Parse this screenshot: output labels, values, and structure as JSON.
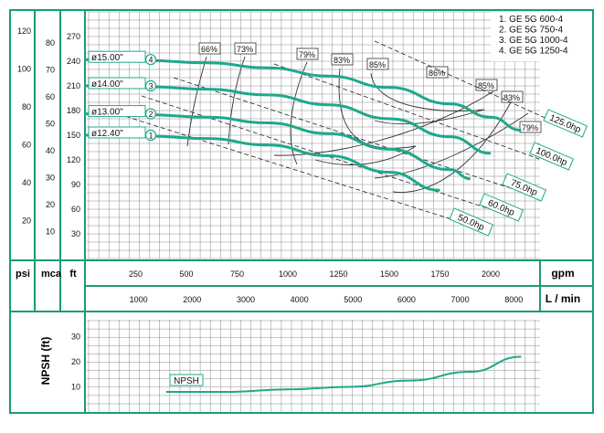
{
  "colors": {
    "frame": "#1a9b78",
    "grid": "#8a8a8a",
    "curve": "#1fa88b",
    "dashed": "#222222",
    "efficiency": "#333333",
    "text": "#111111",
    "background": "#ffffff"
  },
  "labels": {
    "psi": "psi",
    "mca": "mca",
    "ft": "ft",
    "gpm": "gpm",
    "lmin": "L / min",
    "npsh": "NPSH (ft)",
    "npsh_curve": "NPSH"
  },
  "legend": [
    "1. GE 5G 600-4",
    "2. GE 5G 750-4",
    "3. GE 5G 1000-4",
    "4. GE 5G 1250-4"
  ],
  "chart_data": [
    {
      "type": "line",
      "subject": "pump head curves",
      "x_unit": "gpm",
      "y_unit": "ft",
      "xlim": [
        0,
        2300
      ],
      "ylim": [
        0,
        290
      ],
      "grid": true,
      "legend_position": "top-right",
      "x_ticks_gpm": [
        250,
        500,
        750,
        1000,
        1250,
        1500,
        1750,
        2000
      ],
      "x_ticks_lmin": [
        1000,
        2000,
        3000,
        4000,
        5000,
        6000,
        7000,
        8000
      ],
      "y_ticks_ft": [
        30,
        60,
        90,
        120,
        150,
        180,
        210,
        240,
        270
      ],
      "y_ticks_mca": [
        10,
        20,
        30,
        40,
        50,
        60,
        70,
        80
      ],
      "y_ticks_psi": [
        20,
        40,
        60,
        80,
        100,
        120
      ],
      "series": [
        {
          "name": "ø12.40\"",
          "tag": "1",
          "points": [
            [
              0,
              150
            ],
            [
              300,
              149
            ],
            [
              600,
              146
            ],
            [
              900,
              138
            ],
            [
              1200,
              125
            ],
            [
              1500,
              105
            ],
            [
              1750,
              83
            ]
          ]
        },
        {
          "name": "ø13.00\"",
          "tag": "2",
          "points": [
            [
              0,
              176
            ],
            [
              300,
              175
            ],
            [
              600,
              172
            ],
            [
              900,
              165
            ],
            [
              1200,
              152
            ],
            [
              1500,
              133
            ],
            [
              1800,
              108
            ],
            [
              1900,
              97
            ]
          ]
        },
        {
          "name": "ø14.00\"",
          "tag": "3",
          "points": [
            [
              0,
              210
            ],
            [
              300,
              209
            ],
            [
              600,
              206
            ],
            [
              900,
              199
            ],
            [
              1200,
              187
            ],
            [
              1500,
              170
            ],
            [
              1800,
              148
            ],
            [
              2000,
              128
            ]
          ]
        },
        {
          "name": "ø15.00\"",
          "tag": "4",
          "points": [
            [
              0,
              242
            ],
            [
              300,
              241
            ],
            [
              600,
              238
            ],
            [
              900,
              232
            ],
            [
              1200,
              222
            ],
            [
              1500,
              208
            ],
            [
              1800,
              188
            ],
            [
              2000,
              172
            ],
            [
              2150,
              156
            ]
          ]
        }
      ],
      "efficiency_labels": [
        "66%",
        "73%",
        "79%",
        "83%",
        "85%",
        "86%",
        "85%",
        "83%",
        "79%"
      ],
      "power_labels": [
        "125.0hp",
        "100.0hp",
        "75.0hp",
        "60.0hp",
        "50.0hp"
      ]
    },
    {
      "type": "line",
      "subject": "npsh curve",
      "x_unit": "gpm",
      "y_unit": "ft",
      "ylim": [
        0,
        35
      ],
      "y_ticks": [
        10,
        20,
        30
      ],
      "series": [
        {
          "name": "NPSH",
          "points": [
            [
              400,
              8
            ],
            [
              700,
              8
            ],
            [
              1000,
              9
            ],
            [
              1300,
              10
            ],
            [
              1600,
              12.5
            ],
            [
              1900,
              16
            ],
            [
              2150,
              22
            ]
          ]
        }
      ]
    }
  ]
}
